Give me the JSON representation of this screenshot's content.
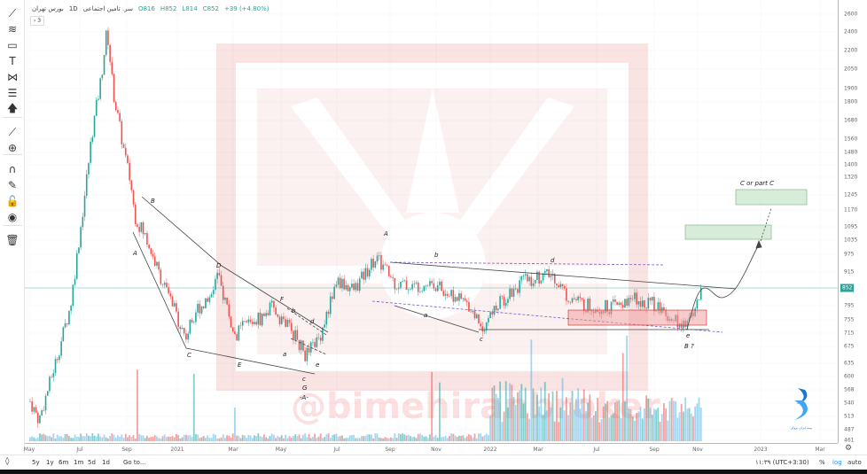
{
  "header": {
    "symbol": "سر. تامین اجتماعی",
    "interval": "1D",
    "exchange": "بورس تهران",
    "open": "O816",
    "high": "H852",
    "low": "L814",
    "close": "C852",
    "change": "+39 (+4.80%)",
    "collapse_label": "› 3"
  },
  "toolbar": {
    "items": [
      {
        "name": "trend-line-icon",
        "glyph": "⟋"
      },
      {
        "name": "fib-icon",
        "glyph": "≋"
      },
      {
        "name": "rectangle-icon",
        "glyph": "▭"
      },
      {
        "name": "text-icon",
        "glyph": "T"
      },
      {
        "name": "pattern-icon",
        "glyph": "⋈"
      },
      {
        "name": "prediction-icon",
        "glyph": "☰"
      },
      {
        "name": "arrow-up-icon",
        "glyph": "🡅"
      },
      {
        "name": "ruler-icon",
        "glyph": "⟋"
      },
      {
        "name": "zoom-in-icon",
        "glyph": "⊕"
      },
      {
        "name": "magnet-icon",
        "glyph": "∩"
      },
      {
        "name": "lock-drawing-icon",
        "glyph": "✎"
      },
      {
        "name": "unlock-icon",
        "glyph": "🔓"
      },
      {
        "name": "eye-icon",
        "glyph": "◉"
      },
      {
        "name": "trash-icon",
        "glyph": "🗑"
      }
    ]
  },
  "price_axis": {
    "labels": [
      "2600",
      "2400",
      "2200",
      "2050",
      "1900",
      "1800",
      "1680",
      "1560",
      "1480",
      "1400",
      "1320",
      "1245",
      "1170",
      "1095",
      "1035",
      "975",
      "915",
      "852",
      "795",
      "755",
      "715",
      "675",
      "635",
      "600",
      "568",
      "540",
      "513",
      "487",
      "461"
    ],
    "current": "852",
    "scale": "log"
  },
  "time_axis": {
    "labels": [
      "May",
      "Jul",
      "Sep",
      "2021",
      "Mar",
      "May",
      "Jul",
      "Sep",
      "Nov",
      "2022",
      "Mar",
      "Jul",
      "Sep",
      "Nov",
      "2023",
      "Mar"
    ]
  },
  "bottom_bar": {
    "ranges": [
      "5y",
      "1y",
      "6m",
      "1m",
      "5d",
      "1d"
    ],
    "goto": "Go to...",
    "clock": "۱۱:۳۹ (UTC+3:30)",
    "percent": "%",
    "log": "log",
    "auto": "auto"
  },
  "watermark": {
    "text": "@bimehiranbroker",
    "logo_caption": "بیمه ایران بروکر"
  },
  "annotations": {
    "A1": "A",
    "B1": "B",
    "C1": "C",
    "D1": "D",
    "E1": "E",
    "F1": "F",
    "b1": "b",
    "d1": "d",
    "a1": "a",
    "c1": "c",
    "e1": "e",
    "G1": "G",
    "A2": "-A-",
    "A3": "A",
    "b2": "b",
    "a2": "a",
    "c2": "c",
    "d2": "d",
    "e2": "e",
    "B2": "B ?",
    "target": "C or part C"
  },
  "colors": {
    "up": "#26a69a",
    "down": "#ef5350",
    "volume": "#5ab4e6",
    "price_line": "#26a69a",
    "zone_red": "#ef9a9a",
    "zone_green": "#c8e6c9"
  },
  "chart_data": {
    "type": "candlestick",
    "scale": "log",
    "ylim": [
      461,
      2600
    ],
    "last_close": 852,
    "close_path": [
      [
        "2020-05-02",
        540
      ],
      [
        "2020-05-13",
        500
      ],
      [
        "2020-06-04",
        650
      ],
      [
        "2020-06-20",
        800
      ],
      [
        "2020-07-06",
        1200
      ],
      [
        "2020-07-17",
        1600
      ],
      [
        "2020-07-29",
        2000
      ],
      [
        "2020-08-06",
        2450
      ],
      [
        "2020-08-14",
        1900
      ],
      [
        "2020-08-28",
        1500
      ],
      [
        "2020-09-11",
        1300
      ],
      [
        "2020-09-20",
        1150
      ],
      [
        "2020-10-17",
        1050
      ],
      [
        "2020-11-20",
        900
      ],
      [
        "2021-01-01",
        760
      ],
      [
        "2021-01-10",
        700
      ],
      [
        "2021-01-20",
        780
      ],
      [
        "2021-02-03",
        820
      ],
      [
        "2021-02-12",
        900
      ],
      [
        "2021-02-22",
        800
      ],
      [
        "2021-03-02",
        700
      ],
      [
        "2021-03-17",
        740
      ],
      [
        "2021-04-08",
        760
      ],
      [
        "2021-04-19",
        790
      ],
      [
        "2021-05-13",
        720
      ],
      [
        "2021-05-28",
        650
      ],
      [
        "2021-06-12",
        700
      ],
      [
        "2021-06-23",
        800
      ],
      [
        "2021-07-01",
        880
      ],
      [
        "2021-07-21",
        850
      ],
      [
        "2021-08-15",
        970
      ],
      [
        "2021-08-25",
        930
      ],
      [
        "2021-09-08",
        870
      ],
      [
        "2021-10-01",
        860
      ],
      [
        "2021-10-24",
        880
      ],
      [
        "2021-11-18",
        830
      ],
      [
        "2021-12-08",
        800
      ],
      [
        "2021-12-23",
        730
      ],
      [
        "2022-01-08",
        790
      ],
      [
        "2022-01-25",
        840
      ],
      [
        "2022-02-11",
        880
      ],
      [
        "2022-03-06",
        900
      ],
      [
        "2022-04-03",
        900
      ],
      [
        "2022-04-30",
        830
      ],
      [
        "2022-06-05",
        800
      ],
      [
        "2022-07-06",
        790
      ],
      [
        "2022-07-25",
        795
      ],
      [
        "2022-08-13",
        820
      ],
      [
        "2022-09-02",
        800
      ],
      [
        "2022-09-27",
        760
      ],
      [
        "2022-10-15",
        725
      ],
      [
        "2022-10-27",
        790
      ],
      [
        "2022-11-06",
        852
      ]
    ]
  }
}
